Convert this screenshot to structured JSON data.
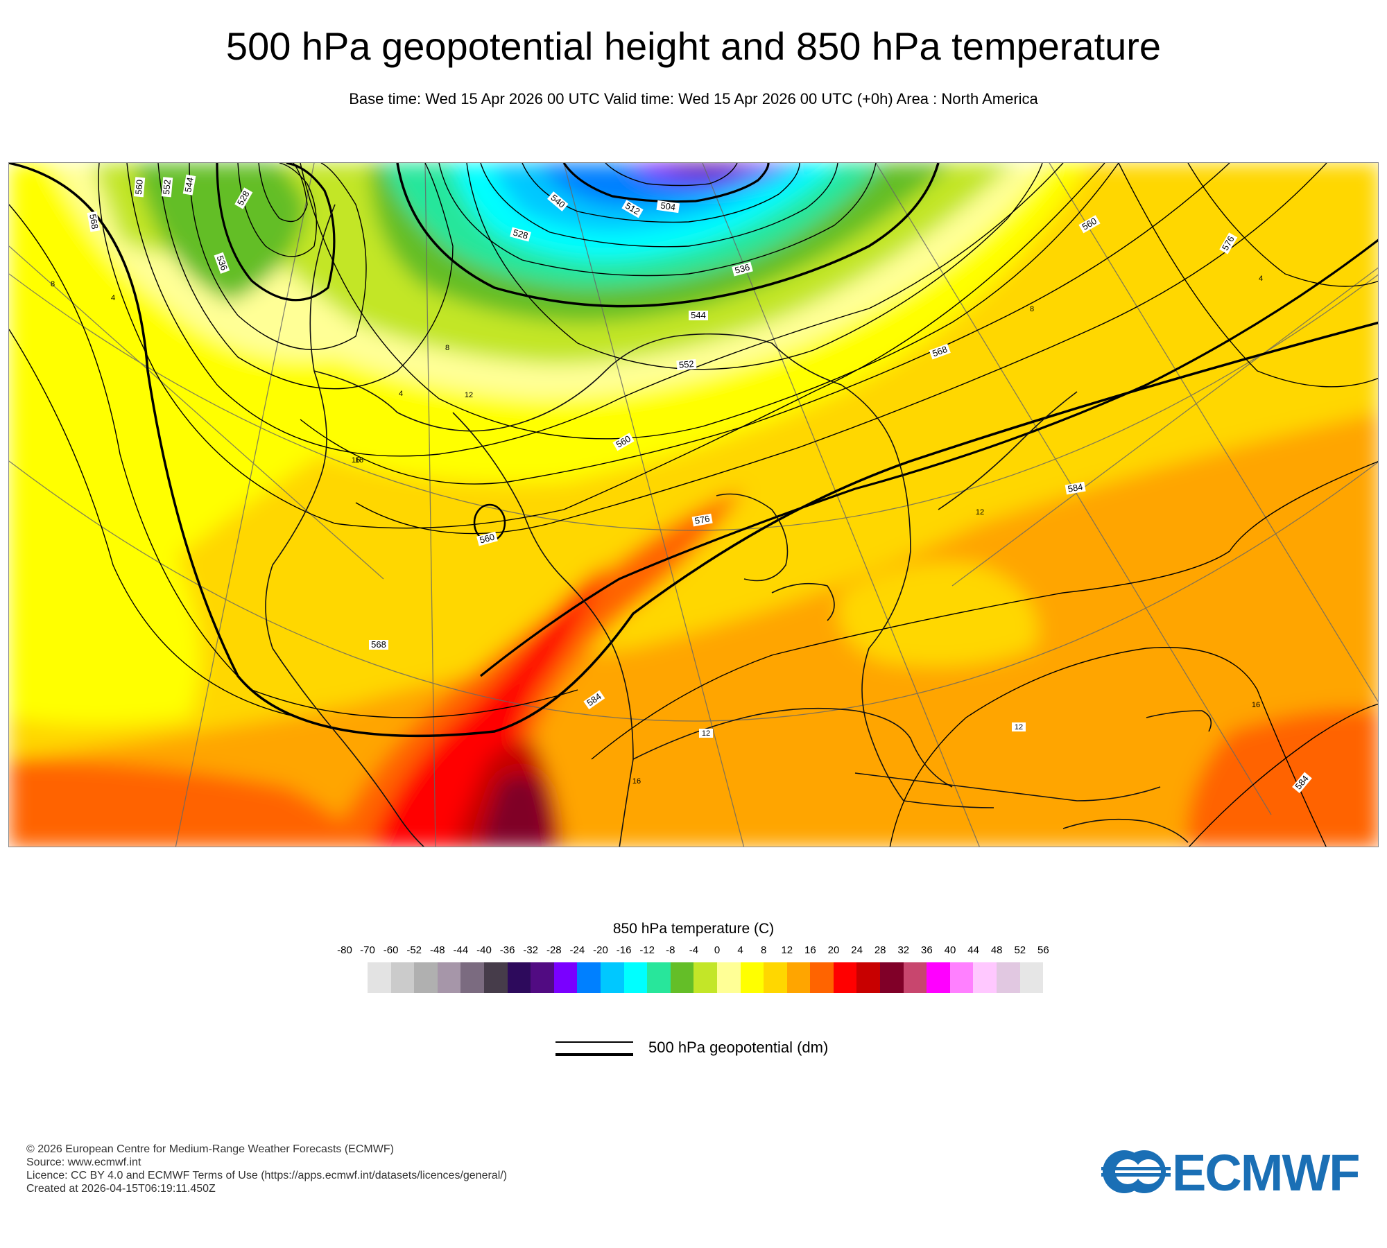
{
  "header": {
    "title": "500 hPa geopotential height and 850 hPa temperature",
    "subtitle": "Base time: Wed 15 Apr 2026 00 UTC Valid time: Wed 15 Apr 2026 00 UTC (+0h) Area : North America"
  },
  "map": {
    "area": "North America",
    "contour_labels": [
      {
        "text": "568"
      },
      {
        "text": "560"
      },
      {
        "text": "552"
      },
      {
        "text": "544"
      },
      {
        "text": "528"
      },
      {
        "text": "536"
      },
      {
        "text": "540"
      },
      {
        "text": "512"
      },
      {
        "text": "504"
      },
      {
        "text": "528"
      },
      {
        "text": "536"
      },
      {
        "text": "544"
      },
      {
        "text": "552"
      },
      {
        "text": "560"
      },
      {
        "text": "568"
      },
      {
        "text": "576"
      },
      {
        "text": "560"
      },
      {
        "text": "560"
      },
      {
        "text": "568"
      },
      {
        "text": "576"
      },
      {
        "text": "584"
      },
      {
        "text": "584"
      },
      {
        "text": "584"
      }
    ],
    "temp_labels": [
      {
        "text": "8"
      },
      {
        "text": "4"
      },
      {
        "text": "4"
      },
      {
        "text": "8"
      },
      {
        "text": "12"
      },
      {
        "text": "16"
      },
      {
        "text": "12"
      },
      {
        "text": "12"
      },
      {
        "text": "16"
      },
      {
        "text": "12"
      },
      {
        "text": "8"
      },
      {
        "text": "4"
      },
      {
        "text": "16"
      },
      {
        "text": "16"
      }
    ]
  },
  "colorbar": {
    "title": "850 hPa temperature (C)",
    "ticks": [
      "-80",
      "-70",
      "-60",
      "-52",
      "-48",
      "-44",
      "-40",
      "-36",
      "-32",
      "-28",
      "-24",
      "-20",
      "-16",
      "-12",
      "-8",
      "-4",
      "0",
      "4",
      "8",
      "12",
      "16",
      "20",
      "24",
      "28",
      "32",
      "36",
      "40",
      "44",
      "48",
      "52",
      "56"
    ],
    "colors": [
      "#e3e3e3",
      "#cbcbcb",
      "#b0b0b0",
      "#a696a9",
      "#7b6b80",
      "#463c4a",
      "#2d0a5c",
      "#510b82",
      "#7a00ff",
      "#0080ff",
      "#00c8ff",
      "#00ffff",
      "#28e69b",
      "#64be28",
      "#c3e628",
      "#ffff96",
      "#ffff00",
      "#ffd700",
      "#ffa500",
      "#ff6400",
      "#ff0000",
      "#c80000",
      "#800028",
      "#c8466e",
      "#ff00ff",
      "#ff80ff",
      "#ffc8ff",
      "#e1c8e1",
      "#e6e6e6"
    ]
  },
  "legend": {
    "label": "500 hPa geopotential (dm)"
  },
  "footer": {
    "lines": [
      "© 2026 European Centre for Medium-Range Weather Forecasts (ECMWF)",
      "Source: www.ecmwf.int",
      "Licence: CC BY 4.0 and ECMWF Terms of Use (https://apps.ecmwf.int/datasets/licences/general/)",
      "Created at 2026-04-15T06:19:11.450Z"
    ]
  },
  "logo": {
    "text": "ECMWF",
    "color": "#1a6fb5"
  }
}
